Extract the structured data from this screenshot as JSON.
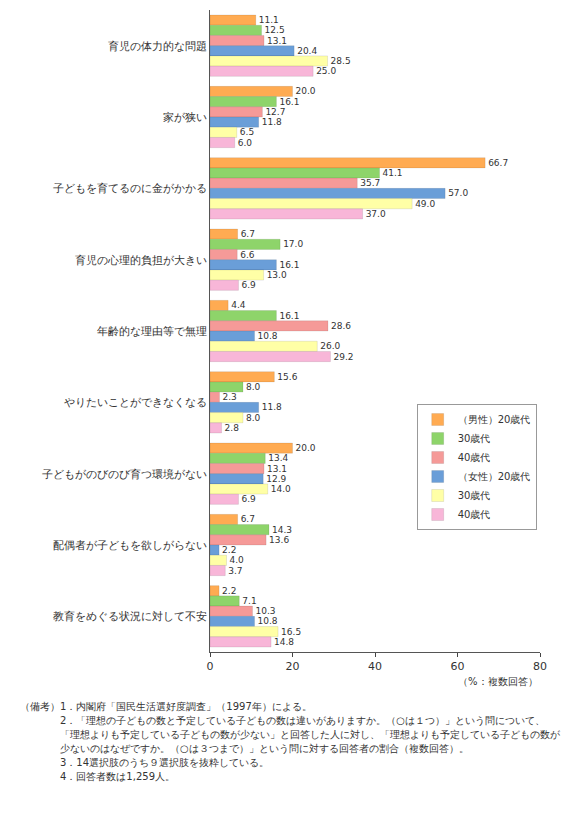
{
  "chart_data": {
    "type": "bar",
    "orientation": "horizontal",
    "categories": [
      "育児の体力的な問題",
      "家が狭い",
      "子どもを育てるのに金がかかる",
      "育児の心理的負担が大きい",
      "年齢的な理由等で無理",
      "やりたいことができなくなる",
      "子どもがのびのび育つ環境がない",
      "配偶者が子どもを欲しがらない",
      "教育をめぐる状況に対して不安"
    ],
    "series": [
      {
        "name": "（男性）20歳代",
        "color": "#ffab52",
        "values": [
          11.1,
          20.0,
          66.7,
          6.7,
          4.4,
          15.6,
          20.0,
          6.7,
          2.2
        ],
        "value_labels": [
          "11.1",
          "20.0",
          "66.7",
          "6.7",
          "4.4",
          "15.6",
          "20.0",
          "6.7",
          "2.2"
        ]
      },
      {
        "name": "30歳代",
        "color": "#8ed46a",
        "values": [
          12.5,
          16.1,
          41.1,
          17.0,
          16.1,
          8.0,
          13.4,
          14.3,
          7.1
        ],
        "value_labels": [
          "12.5",
          "16.1",
          "41.1",
          "17.0",
          "16.1",
          "8.0",
          "13.4",
          "14.3",
          "7.1"
        ]
      },
      {
        "name": "40歳代",
        "color": "#f59a98",
        "values": [
          13.1,
          12.7,
          35.7,
          6.6,
          28.6,
          2.3,
          13.1,
          13.6,
          10.3
        ],
        "value_labels": [
          "13.1",
          "12.7",
          "35.7",
          "6.6",
          "28.6",
          "2.3",
          "13.1",
          "13.6",
          "10.3"
        ]
      },
      {
        "name": "（女性）20歳代",
        "color": "#6a9ed8",
        "values": [
          20.4,
          11.8,
          57.0,
          16.1,
          10.8,
          11.8,
          12.9,
          2.2,
          10.8
        ],
        "value_labels": [
          "20.4",
          "11.8",
          "57.0",
          "16.1",
          "10.8",
          "11.8",
          "12.9",
          "2.2",
          "10.8"
        ]
      },
      {
        "name": "30歳代",
        "color": "#ffffa6",
        "values": [
          28.5,
          6.5,
          49.0,
          13.0,
          26.0,
          8.0,
          14.0,
          4.0,
          16.5
        ],
        "value_labels": [
          "28.5",
          "6.5",
          "49.0",
          "13.0",
          "26.0",
          "8.0",
          "14.0",
          "4.0",
          "16.5"
        ]
      },
      {
        "name": "40歳代",
        "color": "#f8b6d8",
        "values": [
          25.0,
          6.0,
          37.0,
          6.9,
          29.2,
          2.8,
          6.9,
          3.7,
          14.8
        ],
        "value_labels": [
          "25.0",
          "6.0",
          "37.0",
          "6.9",
          "29.2",
          "2.8",
          "6.9",
          "3.7",
          "14.8"
        ]
      }
    ],
    "x_label": "（%：複数回答）",
    "xlim": [
      0,
      80
    ],
    "xticks": [
      0,
      20,
      40,
      60,
      80
    ],
    "grid": false,
    "legend": "lower right",
    "data_labels": true
  },
  "notes": {
    "heading": "（備考）",
    "items": [
      "1．内閣府「国民生活選好度調査」（1997年）による。",
      "2．「理想の子どもの数と予定している子どもの数は違いがありますか。（○は１つ）」という問について、「理想よりも予定している子どもの数が少ない」と回答した人に対し、「理想よりも予定している子どもの数が少ないのはなぜですか。（○は３つまで）」という問に対する回答者の割合（複数回答）。",
      "3．14選択肢のうち９選択肢を抜粋している。",
      "4．回答者数は1,259人。"
    ]
  }
}
